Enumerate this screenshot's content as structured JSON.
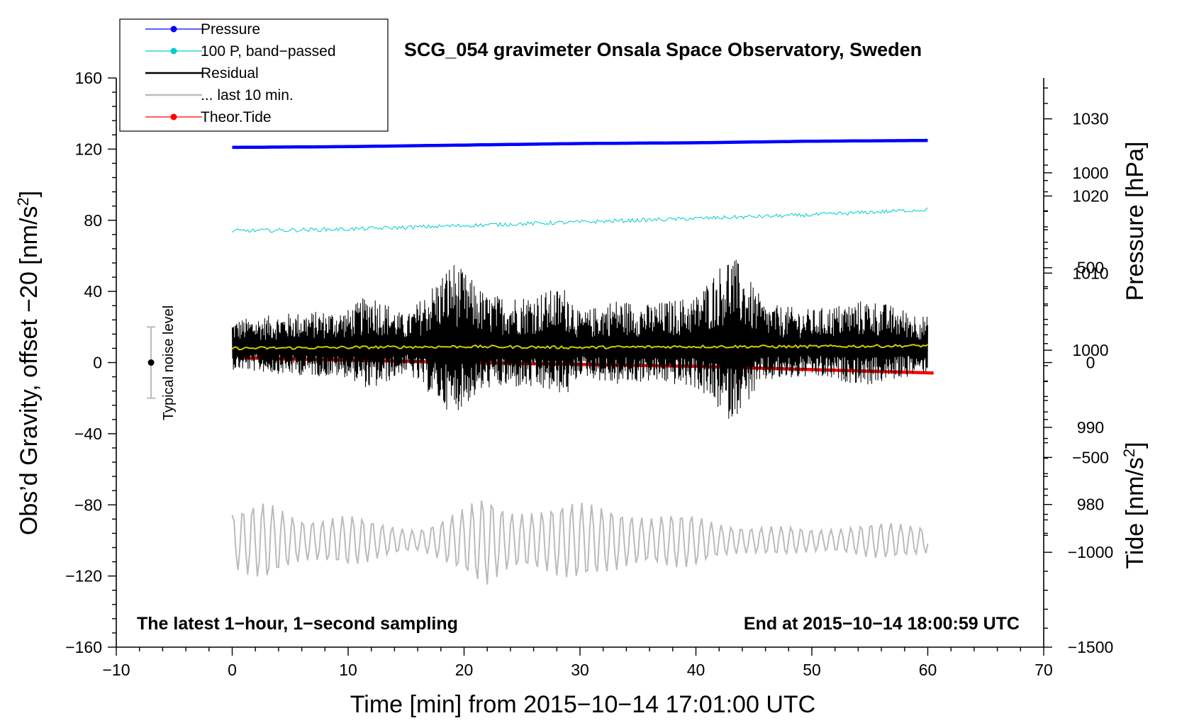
{
  "chart_data": {
    "type": "line",
    "title": "SCG_054 gravimeter Onsala Space Observatory, Sweden",
    "xlabel": "Time [min] from 2015−10−14 17:01:00 UTC",
    "ylabel": "Obs’d Gravity, offset −20 [nm/s²]",
    "ylabel_main": "Obs’d Gravity, offset −20 [nm/s",
    "ylabel_sup": "2",
    "ylabel_close": "]",
    "right_upper_label": "Pressure [hPa]",
    "right_lower_label": "Tide [nm/s²]",
    "right_lower_label_main": "Tide [nm/s",
    "right_lower_label_sup": "2",
    "right_lower_label_close": "]",
    "xlim": [
      -10,
      70
    ],
    "ylim": [
      -160,
      160
    ],
    "x_ticks": [
      -10,
      0,
      10,
      20,
      30,
      40,
      50,
      60,
      70
    ],
    "x_tick_labels": [
      "−10",
      "0",
      "10",
      "20",
      "30",
      "40",
      "50",
      "60",
      "70"
    ],
    "y_ticks": [
      -160,
      -120,
      -80,
      -40,
      0,
      40,
      80,
      120,
      160
    ],
    "y_tick_labels": [
      "−160",
      "−120",
      "−80",
      "−40",
      "0",
      "40",
      "80",
      "120",
      "160"
    ],
    "pressure_axis": {
      "range": [
        961.5,
        1035.3
      ],
      "ticks": [
        980,
        990,
        1000,
        1010,
        1020,
        1030
      ],
      "tick_labels": [
        "980",
        "990",
        "1000",
        "1010",
        "1020",
        "1030"
      ]
    },
    "tide_axis": {
      "range": [
        -1500,
        1500
      ],
      "ticks": [
        -1500,
        -1000,
        -500,
        0,
        500,
        1000
      ],
      "tick_labels": [
        "−1500",
        "−1000",
        "−500",
        "0",
        "500",
        "1000"
      ]
    },
    "annotation_left": "The latest 1−hour, 1−second sampling",
    "annotation_right": "End at 2015−10−14 18:00:59 UTC",
    "noise_label": "Typical noise level",
    "noise_bar": {
      "x": -7,
      "center": 0,
      "low": -20,
      "high": 20
    },
    "legend": {
      "position": "top-left",
      "entries": [
        {
          "label": "Pressure",
          "color": "#0000ff",
          "style": "line-dot"
        },
        {
          "label": "100 P, band−passed",
          "color": "#00cccc",
          "style": "line-dot"
        },
        {
          "label": "Residual",
          "color": "#000000",
          "style": "line"
        },
        {
          "label": "... last 10 min.",
          "color": "#bbbbbb",
          "style": "line"
        },
        {
          "label": "Theor.Tide",
          "color": "#ff0000",
          "style": "line-dot"
        }
      ]
    },
    "series": [
      {
        "name": "Pressure",
        "color": "#0000ff",
        "axis": "pressure",
        "x": [
          0,
          10,
          20,
          30,
          40,
          50,
          60
        ],
        "values": [
          1026.3,
          1026.4,
          1026.6,
          1026.8,
          1026.9,
          1027.1,
          1027.2
        ]
      },
      {
        "name": "100 P, band−passed",
        "color": "#00cccc",
        "axis": "gravity",
        "x": [
          0,
          10,
          20,
          30,
          40,
          50,
          60
        ],
        "values": [
          74,
          75,
          77,
          79,
          81,
          83,
          86
        ]
      },
      {
        "name": "Residual",
        "color": "#000000",
        "axis": "gravity",
        "x_range": [
          0,
          60
        ],
        "baseline": 8,
        "envelope_x": [
          0,
          5,
          10,
          12,
          15,
          19,
          22,
          25,
          29,
          30,
          33,
          36,
          40,
          43,
          46,
          50,
          55,
          60
        ],
        "envelope": [
          16,
          20,
          22,
          32,
          18,
          50,
          30,
          30,
          35,
          20,
          28,
          25,
          30,
          55,
          25,
          22,
          28,
          18
        ]
      },
      {
        "name": "Residual mean",
        "color": "#cccc00",
        "axis": "gravity",
        "x": [
          0,
          10,
          20,
          30,
          40,
          50,
          60
        ],
        "values": [
          8,
          8.5,
          9,
          8.5,
          9,
          9,
          9.5
        ]
      },
      {
        "name": "Theor.Tide",
        "color": "#ff0000",
        "axis": "tide",
        "x": [
          0.5,
          20,
          40,
          60.5
        ],
        "values": [
          25,
          0,
          -20,
          -55
        ]
      },
      {
        "name": "... last 10 min.",
        "color": "#bbbbbb",
        "axis": "gravity",
        "x_range": [
          0,
          60
        ],
        "center": -100,
        "envelope_x": [
          0,
          3,
          6,
          10,
          13,
          16,
          20,
          22,
          24,
          27,
          30,
          33,
          36,
          40,
          45,
          50,
          55,
          60
        ],
        "envelope": [
          18,
          22,
          16,
          15,
          10,
          8,
          18,
          28,
          22,
          20,
          22,
          24,
          14,
          16,
          8,
          8,
          10,
          10
        ]
      }
    ]
  }
}
